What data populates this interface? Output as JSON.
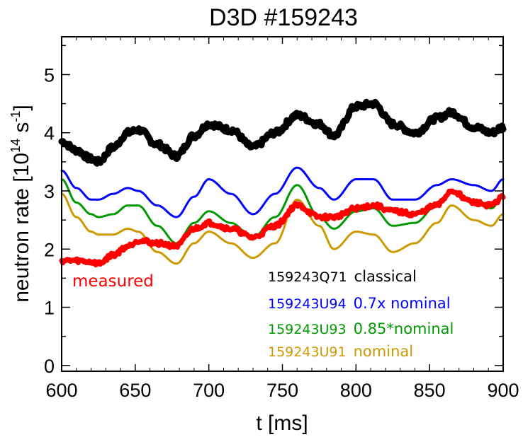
{
  "chart_data": {
    "type": "line",
    "title": "D3D #159243",
    "xlabel": "t [ms]",
    "ylabel": {
      "prefix": "neutron rate [10",
      "exp1": "14",
      "mid": " s",
      "exp2": "-1",
      "suffix": "]"
    },
    "xlim": [
      600,
      900
    ],
    "ylim": [
      -0.1,
      5.65
    ],
    "xticks": [
      600,
      650,
      700,
      750,
      800,
      850,
      900
    ],
    "yticks": [
      0,
      1,
      2,
      3,
      4,
      5
    ],
    "x": [
      600,
      610,
      620,
      625,
      635,
      645,
      652,
      665,
      678,
      690,
      700,
      715,
      730,
      745,
      760,
      775,
      785,
      800,
      812,
      825,
      840,
      855,
      865,
      880,
      892,
      900
    ],
    "series": [
      {
        "name": "classical",
        "label_id": "159243Q71",
        "label_desc": "classical",
        "color": "#000000",
        "width": 9,
        "noise": 0.05,
        "values": [
          3.85,
          3.7,
          3.55,
          3.5,
          3.75,
          4.0,
          4.05,
          3.8,
          3.6,
          3.95,
          4.15,
          4.05,
          3.75,
          4.0,
          4.3,
          4.15,
          3.95,
          4.45,
          4.5,
          4.15,
          4.0,
          4.25,
          4.35,
          4.1,
          4.0,
          4.1
        ]
      },
      {
        "name": "0.7x nominal",
        "label_id": "159243U94",
        "label_desc": "0.7x nominal",
        "color": "#0000ff",
        "width": 3,
        "noise": 0.0,
        "values": [
          3.35,
          3.05,
          2.85,
          2.85,
          2.95,
          3.05,
          3.0,
          2.75,
          2.55,
          2.9,
          3.2,
          2.95,
          2.6,
          2.95,
          3.4,
          3.05,
          2.85,
          3.2,
          3.2,
          2.85,
          2.85,
          3.1,
          3.2,
          3.1,
          3.0,
          3.2
        ]
      },
      {
        "name": "0.85*nominal",
        "label_id": "159243U93",
        "label_desc": "0.85*nominal",
        "color": "#009900",
        "width": 3,
        "noise": 0.0,
        "values": [
          3.2,
          2.8,
          2.6,
          2.55,
          2.6,
          2.75,
          2.75,
          2.4,
          2.1,
          2.45,
          2.65,
          2.45,
          2.2,
          2.55,
          3.1,
          2.55,
          2.35,
          2.65,
          2.7,
          2.4,
          2.45,
          2.75,
          3.0,
          2.8,
          2.7,
          2.9
        ]
      },
      {
        "name": "nominal",
        "label_id": "159243U91",
        "label_desc": "nominal",
        "color": "#cc9900",
        "width": 3,
        "noise": 0.0,
        "values": [
          2.95,
          2.55,
          2.3,
          2.25,
          2.25,
          2.35,
          2.3,
          1.95,
          1.75,
          2.1,
          2.3,
          2.1,
          1.85,
          2.1,
          2.85,
          2.4,
          2.0,
          2.3,
          2.25,
          1.95,
          2.1,
          2.45,
          2.75,
          2.5,
          2.4,
          2.6
        ]
      },
      {
        "name": "measured",
        "label_id": "",
        "label_desc": "measured",
        "color": "#ff0000",
        "width": 7,
        "noise": 0.04,
        "values": [
          1.8,
          1.8,
          1.78,
          1.75,
          1.9,
          2.05,
          2.15,
          2.1,
          2.05,
          2.35,
          2.45,
          2.35,
          2.2,
          2.4,
          2.75,
          2.55,
          2.55,
          2.7,
          2.75,
          2.65,
          2.6,
          2.75,
          3.0,
          2.8,
          2.75,
          2.9
        ]
      }
    ],
    "legend_order": [
      0,
      1,
      2,
      3
    ],
    "annotation_series": 4,
    "legend_position": "lower-right"
  }
}
